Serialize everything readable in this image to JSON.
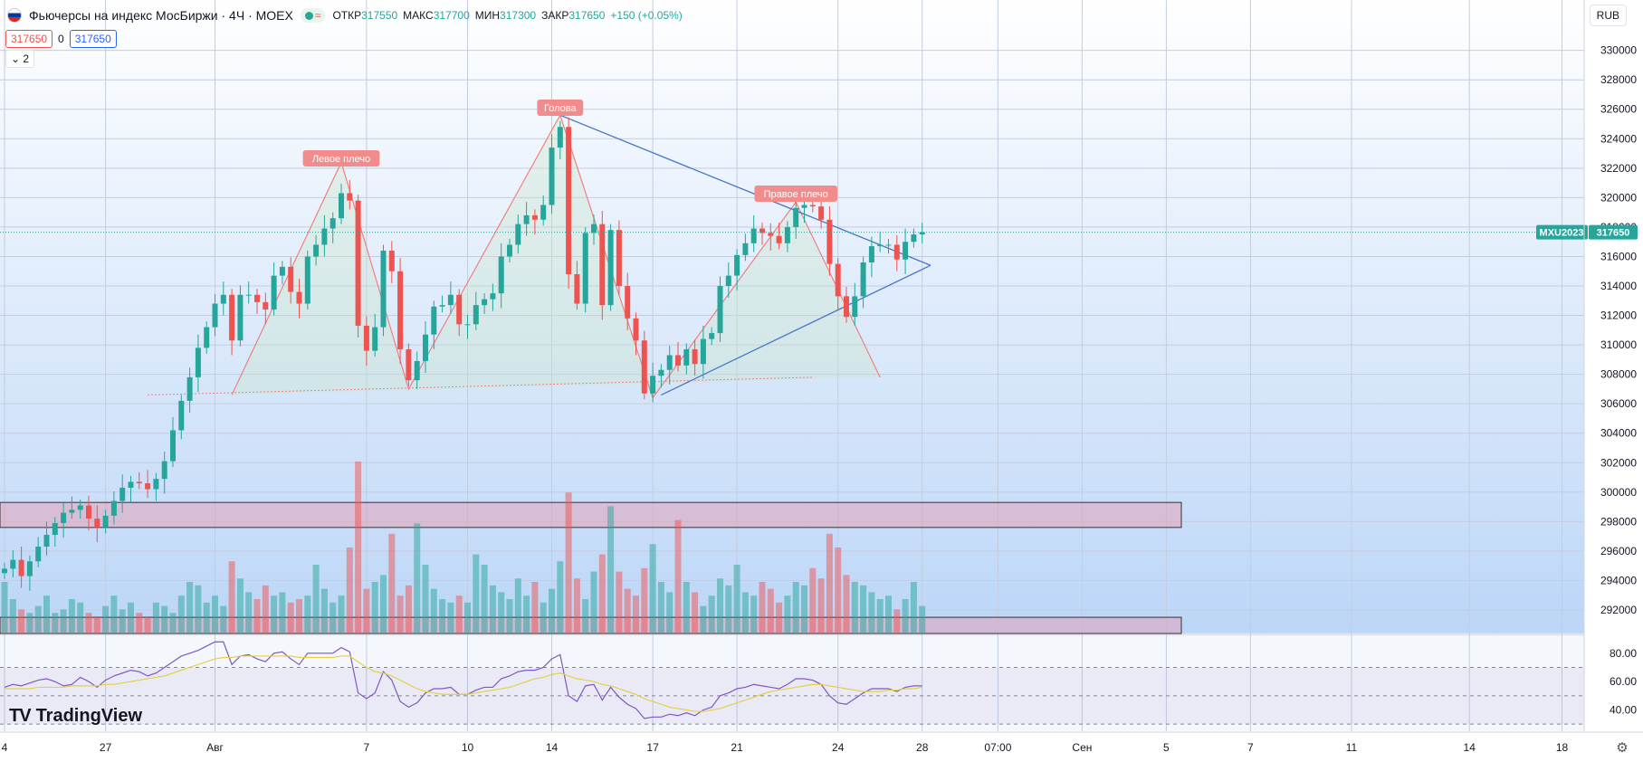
{
  "header": {
    "title": "Фьючерсы на индекс МосБиржи · 4Ч · MOEX",
    "open_label": "ОТКР",
    "open": "317550",
    "high_label": "МАКС",
    "high": "317700",
    "low_label": "МИН",
    "low": "317300",
    "close_label": "ЗАКР",
    "close": "317650",
    "change": "+150 (+0.05%)"
  },
  "price_boxes": {
    "bid": "317650",
    "spread": "0",
    "ask": "317650"
  },
  "collapse_label": "2",
  "currency": "RUB",
  "symbol_tag": "MXU2023",
  "last_price": "317650",
  "logo_text": "TradingView",
  "colors": {
    "up": "#26a69a",
    "down": "#ef5350",
    "pattern_line": "#f08080",
    "trend_line": "#4a77c9",
    "rsi_line": "#7e57c2",
    "rsi_ma": "#e3d04a"
  },
  "annotations": [
    {
      "text": "Левое плечо",
      "i": 40
    },
    {
      "text": "Голова",
      "i": 66
    },
    {
      "text": "Правое плечо",
      "i": 94
    }
  ],
  "chart_data": {
    "type": "candlestick",
    "y_ticks": [
      292000,
      294000,
      296000,
      298000,
      300000,
      302000,
      304000,
      306000,
      308000,
      310000,
      312000,
      314000,
      316000,
      318000,
      320000,
      322000,
      324000,
      326000,
      328000,
      330000
    ],
    "ylim": [
      290400,
      331700
    ],
    "x_labels": [
      {
        "text": "4",
        "i": 0
      },
      {
        "text": "27",
        "i": 12
      },
      {
        "text": "Авг",
        "i": 25
      },
      {
        "text": "7",
        "i": 43
      },
      {
        "text": "10",
        "i": 55
      },
      {
        "text": "14",
        "i": 65
      },
      {
        "text": "17",
        "i": 77
      },
      {
        "text": "21",
        "i": 87
      },
      {
        "text": "24",
        "i": 99
      },
      {
        "text": "28",
        "i": 109
      },
      {
        "text": "07:00",
        "i": 118
      },
      {
        "text": "Сен",
        "i": 128
      },
      {
        "text": "5",
        "i": 138
      },
      {
        "text": "7",
        "i": 148
      },
      {
        "text": "11",
        "i": 160
      },
      {
        "text": "14",
        "i": 174
      },
      {
        "text": "18",
        "i": 185
      }
    ],
    "closes": [
      294800,
      295400,
      294300,
      295300,
      296300,
      297100,
      297900,
      298600,
      298800,
      299100,
      298200,
      297600,
      298400,
      299400,
      300300,
      300700,
      300600,
      300200,
      300900,
      302100,
      304200,
      306200,
      307800,
      309800,
      311200,
      312800,
      313400,
      310300,
      313400,
      313400,
      312900,
      312400,
      314700,
      315300,
      313600,
      312800,
      316000,
      316800,
      317900,
      318600,
      320300,
      319800,
      311300,
      309600,
      311200,
      316400,
      315000,
      309700,
      307600,
      308900,
      310700,
      312600,
      312700,
      313400,
      311400,
      311400,
      312700,
      313100,
      313500,
      316000,
      316800,
      318200,
      318800,
      318500,
      319500,
      323400,
      324800,
      314800,
      312800,
      317600,
      318200,
      312700,
      317800,
      314000,
      311800,
      310300,
      306700,
      307900,
      308300,
      309300,
      308600,
      309700,
      308700,
      310400,
      310800,
      314000,
      314700,
      316100,
      316900,
      317900,
      317600,
      317400,
      316900,
      318000,
      319300,
      319500,
      319400,
      318500,
      315500,
      313300,
      311900,
      313300,
      315600,
      316700,
      316800,
      316800,
      315800,
      317000,
      317500,
      317650
    ],
    "volumes": [
      30,
      20,
      14,
      12,
      16,
      22,
      12,
      14,
      20,
      18,
      12,
      10,
      16,
      22,
      14,
      18,
      12,
      10,
      18,
      16,
      12,
      22,
      30,
      28,
      18,
      22,
      16,
      42,
      32,
      24,
      20,
      28,
      22,
      24,
      18,
      20,
      22,
      40,
      26,
      18,
      22,
      50,
      100,
      26,
      30,
      34,
      58,
      22,
      28,
      64,
      40,
      26,
      20,
      18,
      22,
      18,
      46,
      40,
      28,
      24,
      20,
      32,
      22,
      30,
      18,
      26,
      42,
      82,
      32,
      20,
      36,
      46,
      74,
      36,
      26,
      22,
      38,
      52,
      30,
      24,
      66,
      30,
      24,
      16,
      22,
      32,
      28,
      40,
      24,
      22,
      30,
      26,
      18,
      22,
      30,
      28,
      38,
      32,
      58,
      50,
      34,
      30,
      28,
      24,
      20,
      22,
      14,
      20,
      30,
      16
    ]
  },
  "rsi": {
    "y_ticks": [
      40,
      60,
      80
    ],
    "ylim": [
      25,
      92
    ],
    "bands": [
      30,
      50,
      70
    ],
    "values": [
      56,
      58,
      57,
      59,
      61,
      62,
      60,
      57,
      58,
      63,
      60,
      56,
      61,
      64,
      66,
      68,
      67,
      64,
      66,
      70,
      74,
      78,
      80,
      82,
      85,
      88,
      88,
      72,
      78,
      79,
      76,
      74,
      80,
      81,
      76,
      72,
      80,
      80,
      80,
      80,
      84,
      81,
      52,
      48,
      52,
      67,
      61,
      46,
      42,
      45,
      52,
      55,
      55,
      56,
      51,
      51,
      54,
      56,
      56,
      62,
      64,
      67,
      68,
      68,
      70,
      76,
      79,
      50,
      46,
      57,
      58,
      47,
      56,
      49,
      44,
      41,
      34,
      35,
      35,
      37,
      36,
      38,
      36,
      40,
      42,
      50,
      52,
      55,
      56,
      58,
      57,
      56,
      55,
      58,
      62,
      62,
      61,
      58,
      50,
      45,
      44,
      48,
      52,
      55,
      55,
      55,
      53,
      56,
      57,
      57
    ],
    "ma": [
      55,
      55,
      55,
      55,
      56,
      56,
      56,
      56,
      57,
      57,
      57,
      57,
      58,
      58,
      59,
      60,
      61,
      62,
      63,
      64,
      66,
      68,
      70,
      72,
      74,
      76,
      77,
      77,
      78,
      78,
      78,
      78,
      78,
      78,
      78,
      77,
      77,
      77,
      77,
      77,
      78,
      78,
      74,
      70,
      67,
      66,
      64,
      61,
      58,
      55,
      53,
      52,
      51,
      51,
      51,
      51,
      52,
      53,
      54,
      55,
      56,
      58,
      60,
      62,
      63,
      65,
      66,
      64,
      62,
      61,
      60,
      58,
      57,
      55,
      53,
      51,
      48,
      46,
      44,
      42,
      41,
      40,
      39,
      39,
      40,
      41,
      43,
      45,
      47,
      49,
      51,
      53,
      54,
      55,
      56,
      57,
      58,
      58,
      57,
      56,
      55,
      54,
      53,
      53,
      53,
      54,
      54,
      55,
      55,
      56
    ]
  }
}
